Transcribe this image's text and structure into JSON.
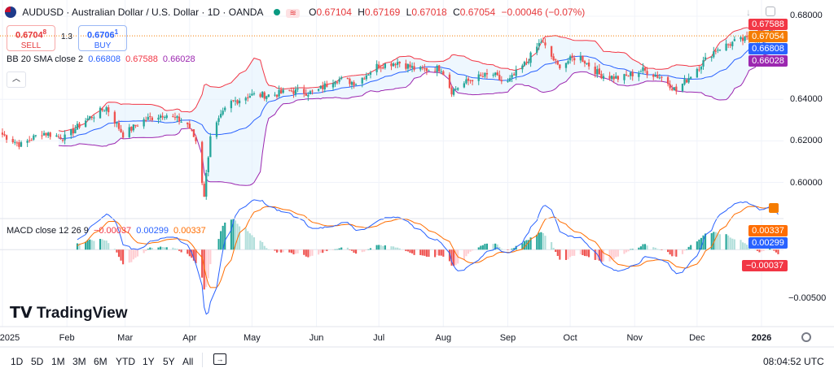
{
  "header": {
    "symbol_title": "AUDUSD · Australian Dollar / U.S. Dollar · 1D · OANDA",
    "open_label": "O",
    "open": "0.67104",
    "high_label": "H",
    "high": "0.67169",
    "low_label": "L",
    "low": "0.67018",
    "close_label": "C",
    "close": "0.67054",
    "change": "−0.00046 (−0.07%)"
  },
  "trade": {
    "sell_price": "0.6704",
    "sell_sup": "8",
    "sell_label": "SELL",
    "spread": "1.3",
    "buy_price": "0.6706",
    "buy_sup": "1",
    "buy_label": "BUY"
  },
  "bb_legend": {
    "name": "BB 20 SMA close 2",
    "basis": "0.66808",
    "upper": "0.67588",
    "lower": "0.66028"
  },
  "macd_legend": {
    "name": "MACD close 12 26 9",
    "hist": "−0.00037",
    "macd": "0.00299",
    "signal": "0.00337"
  },
  "price_axis": {
    "ticks": [
      "0.68000",
      "0.64000",
      "0.62000",
      "0.60000"
    ]
  },
  "macd_axis": {
    "ticks": [
      "−0.00500"
    ]
  },
  "badges": {
    "bb_upper": "0.67588",
    "close": "0.67054",
    "bb_basis": "0.66808",
    "bb_lower": "0.66028",
    "signal": "0.00337",
    "macd": "0.00299",
    "hist": "−0.00037"
  },
  "time_axis": {
    "labels": [
      "2025",
      "Feb",
      "Mar",
      "Apr",
      "May",
      "Jun",
      "Jul",
      "Aug",
      "Sep",
      "Oct",
      "Nov",
      "Dec",
      "2026"
    ]
  },
  "toolbar": {
    "timeframes": [
      "1D",
      "5D",
      "1M",
      "3M",
      "6M",
      "YTD",
      "1Y",
      "5Y",
      "All"
    ],
    "clock": "08:04:52 UTC"
  },
  "brand": "TradingView",
  "colors": {
    "up": "#26a69a",
    "down": "#ef5350",
    "bb_upper": "#f23645",
    "bb_basis": "#2962ff",
    "bb_lower": "#9c27b0",
    "bb_fill": "#e3f2fd",
    "macd": "#2962ff",
    "signal": "#ff6d00",
    "close_line": "#f57c00"
  },
  "chart_data": [
    {
      "type": "candlestick",
      "title": "AUDUSD · Australian Dollar / U.S. Dollar · 1D · OANDA",
      "x_range": [
        "2025-01-01",
        "2026-01-10"
      ],
      "ylim": [
        0.59,
        0.68
      ],
      "y_ticks": [
        0.6,
        0.62,
        0.64,
        0.68
      ],
      "anchors": [
        [
          "2025-01-01",
          0.623
        ],
        [
          "2025-01-10",
          0.618
        ],
        [
          "2025-01-20",
          0.624
        ],
        [
          "2025-01-31",
          0.6215
        ],
        [
          "2025-02-10",
          0.63
        ],
        [
          "2025-02-20",
          0.636
        ],
        [
          "2025-02-28",
          0.623
        ],
        [
          "2025-03-10",
          0.63
        ],
        [
          "2025-03-20",
          0.633
        ],
        [
          "2025-03-31",
          0.628
        ],
        [
          "2025-04-04",
          0.62
        ],
        [
          "2025-04-08",
          0.594
        ],
        [
          "2025-04-11",
          0.623
        ],
        [
          "2025-04-20",
          0.638
        ],
        [
          "2025-04-30",
          0.642
        ],
        [
          "2025-05-10",
          0.642
        ],
        [
          "2025-05-20",
          0.644
        ],
        [
          "2025-05-31",
          0.643
        ],
        [
          "2025-06-10",
          0.65
        ],
        [
          "2025-06-20",
          0.648
        ],
        [
          "2025-06-30",
          0.656
        ],
        [
          "2025-07-10",
          0.658
        ],
        [
          "2025-07-20",
          0.654
        ],
        [
          "2025-07-31",
          0.655
        ],
        [
          "2025-08-05",
          0.644
        ],
        [
          "2025-08-15",
          0.65
        ],
        [
          "2025-08-25",
          0.652
        ],
        [
          "2025-08-31",
          0.647
        ],
        [
          "2025-09-10",
          0.658
        ],
        [
          "2025-09-17",
          0.668
        ],
        [
          "2025-09-25",
          0.656
        ],
        [
          "2025-10-05",
          0.661
        ],
        [
          "2025-10-15",
          0.652
        ],
        [
          "2025-10-25",
          0.65
        ],
        [
          "2025-11-05",
          0.654
        ],
        [
          "2025-11-15",
          0.65
        ],
        [
          "2025-11-21",
          0.644
        ],
        [
          "2025-12-01",
          0.655
        ],
        [
          "2025-12-10",
          0.664
        ],
        [
          "2025-12-20",
          0.668
        ],
        [
          "2025-12-31",
          0.67
        ],
        [
          "2026-01-05",
          0.674
        ],
        [
          "2026-01-10",
          0.6705
        ]
      ],
      "last": {
        "open": 0.67104,
        "high": 0.67169,
        "low": 0.67018,
        "close": 0.67054
      }
    },
    {
      "type": "line",
      "title": "BB 20 SMA close 2",
      "series": [
        {
          "name": "basis",
          "last": 0.66808
        },
        {
          "name": "upper",
          "last": 0.67588
        },
        {
          "name": "lower",
          "last": 0.66028
        }
      ]
    },
    {
      "type": "bar",
      "title": "MACD close 12 26 9",
      "ylim": [
        -0.0068,
        0.0025
      ],
      "y_ticks": [
        -0.005
      ],
      "series": [
        {
          "name": "histogram",
          "last": -0.00037
        },
        {
          "name": "macd",
          "last": 0.00299
        },
        {
          "name": "signal",
          "last": 0.00337
        }
      ]
    }
  ]
}
